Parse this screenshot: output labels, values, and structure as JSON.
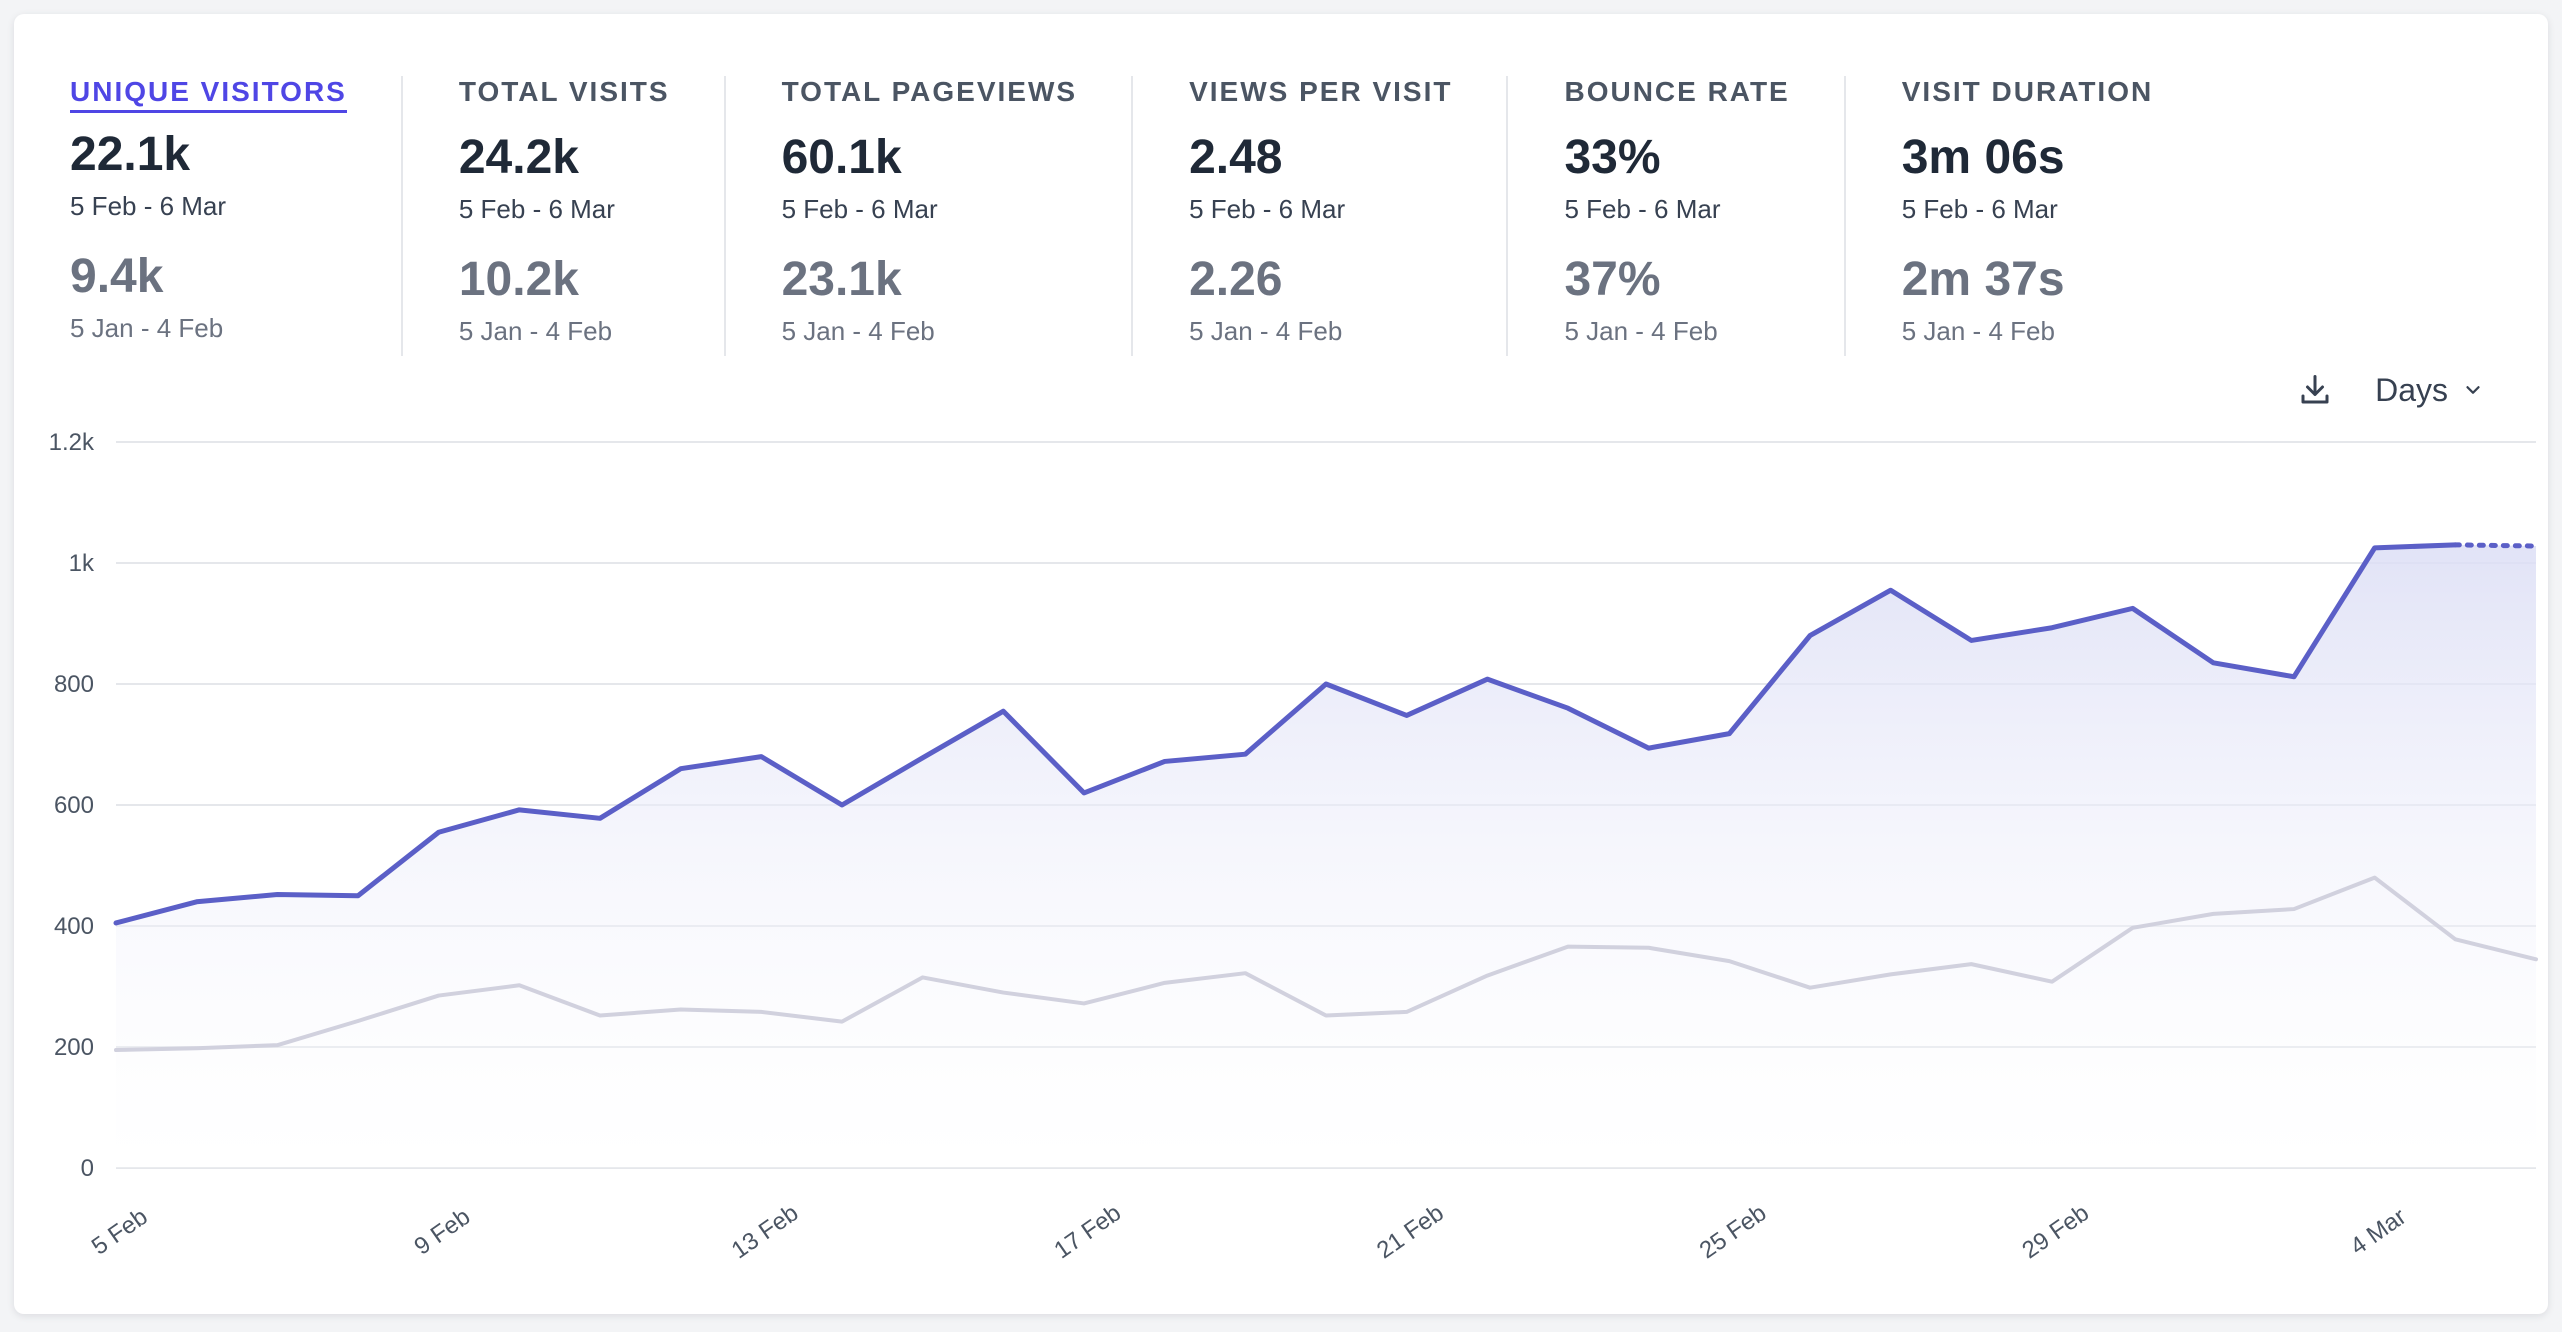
{
  "stats": [
    {
      "label": "UNIQUE VISITORS",
      "value": "22.1k",
      "period": "5 Feb - 6 Mar",
      "prev_value": "9.4k",
      "prev_period": "5 Jan - 4 Feb",
      "active": true
    },
    {
      "label": "TOTAL VISITS",
      "value": "24.2k",
      "period": "5 Feb - 6 Mar",
      "prev_value": "10.2k",
      "prev_period": "5 Jan - 4 Feb",
      "active": false
    },
    {
      "label": "TOTAL PAGEVIEWS",
      "value": "60.1k",
      "period": "5 Feb - 6 Mar",
      "prev_value": "23.1k",
      "prev_period": "5 Jan - 4 Feb",
      "active": false
    },
    {
      "label": "VIEWS PER VISIT",
      "value": "2.48",
      "period": "5 Feb - 6 Mar",
      "prev_value": "2.26",
      "prev_period": "5 Jan - 4 Feb",
      "active": false
    },
    {
      "label": "BOUNCE RATE",
      "value": "33%",
      "period": "5 Feb - 6 Mar",
      "prev_value": "37%",
      "prev_period": "5 Jan - 4 Feb",
      "active": false
    },
    {
      "label": "VISIT DURATION",
      "value": "3m 06s",
      "period": "5 Feb - 6 Mar",
      "prev_value": "2m 37s",
      "prev_period": "5 Jan - 4 Feb",
      "active": false
    }
  ],
  "controls": {
    "download_icon": "download-icon",
    "interval_label": "Days",
    "interval_icon": "chevron-down-icon"
  },
  "colors": {
    "accent": "#6366f1",
    "current_line": "#5b5fc7",
    "previous_line": "#d1d1de",
    "grid": "#e5e7eb",
    "fill": "#e0e1f5"
  },
  "chart_data": {
    "type": "area",
    "ylim": [
      0,
      1200
    ],
    "y_ticks": [
      {
        "value": 0,
        "label": "0"
      },
      {
        "value": 200,
        "label": "200"
      },
      {
        "value": 400,
        "label": "400"
      },
      {
        "value": 600,
        "label": "600"
      },
      {
        "value": 800,
        "label": "800"
      },
      {
        "value": 1000,
        "label": "1k"
      },
      {
        "value": 1200,
        "label": "1.2k"
      }
    ],
    "x_ticks": [
      {
        "index": 0,
        "label": "5 Feb"
      },
      {
        "index": 4,
        "label": "9 Feb"
      },
      {
        "index": 8,
        "label": "13 Feb"
      },
      {
        "index": 12,
        "label": "17 Feb"
      },
      {
        "index": 16,
        "label": "21 Feb"
      },
      {
        "index": 20,
        "label": "25 Feb"
      },
      {
        "index": 24,
        "label": "29 Feb"
      },
      {
        "index": 28,
        "label": "4 Mar"
      }
    ],
    "grid": true,
    "series": [
      {
        "values": [
          405,
          440,
          452,
          450,
          555,
          592,
          578,
          660,
          680,
          600,
          678,
          755,
          620,
          672,
          684,
          800,
          748,
          808,
          760,
          694,
          718,
          880,
          955,
          872,
          893,
          925,
          835,
          812,
          1025,
          1030,
          1028
        ],
        "style": "current",
        "dotted_from_index": 29
      },
      {
        "values": [
          195,
          198,
          203,
          243,
          285,
          302,
          252,
          262,
          258,
          242,
          315,
          290,
          272,
          306,
          322,
          252,
          258,
          318,
          366,
          364,
          342,
          298,
          320,
          337,
          308,
          397,
          420,
          428,
          480,
          378,
          345
        ],
        "style": "previous"
      }
    ]
  }
}
